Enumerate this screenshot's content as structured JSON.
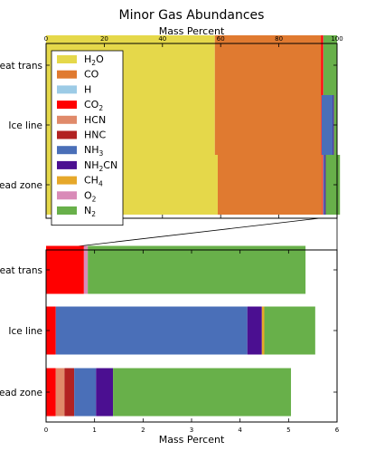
{
  "chart_data": [
    {
      "type": "bar",
      "orientation": "horizontal",
      "stacked": true,
      "title": "Minor Gas Abundances",
      "xlabel": "Mass Percent",
      "xlabel_position": "top",
      "xlim": [
        0,
        100
      ],
      "xticks": [
        "0",
        "20",
        "40",
        "60",
        "80",
        "100"
      ],
      "categories": [
        "Heat trans",
        "Ice line",
        "Dead zone"
      ],
      "legend_location": "top-left",
      "series": [
        {
          "name": "H$_2$O",
          "color": "#e5d84a",
          "values": [
            58.0,
            58.0,
            59.0
          ]
        },
        {
          "name": "CO",
          "color": "#e07a30",
          "values": [
            36.5,
            36.5,
            35.8
          ]
        },
        {
          "name": "H",
          "color": "#9ccbe6",
          "values": [
            0.0,
            0.0,
            0.0
          ]
        },
        {
          "name": "CO$_2$",
          "color": "#ff0000",
          "values": [
            0.7,
            0.2,
            0.2
          ]
        },
        {
          "name": "HCN",
          "color": "#e08a6a",
          "values": [
            0.0,
            0.0,
            0.15
          ]
        },
        {
          "name": "HNC",
          "color": "#b22222",
          "values": [
            0.0,
            0.0,
            0.15
          ]
        },
        {
          "name": "NH$_3$",
          "color": "#4a6fb8",
          "values": [
            0.0,
            3.9,
            0.45
          ]
        },
        {
          "name": "NH$_2$CN",
          "color": "#4b0f91",
          "values": [
            0.0,
            0.3,
            0.35
          ]
        },
        {
          "name": "CH$_4$",
          "color": "#e6a82a",
          "values": [
            0.0,
            0.05,
            0.0
          ]
        },
        {
          "name": "O$_2$",
          "color": "#d98bb8",
          "values": [
            0.1,
            0.0,
            0.0
          ]
        },
        {
          "name": "N$_2$",
          "color": "#68b04a",
          "values": [
            4.7,
            1.05,
            4.9
          ]
        }
      ]
    },
    {
      "type": "bar",
      "orientation": "horizontal",
      "stacked": true,
      "xlabel": "Mass Percent",
      "xlim": [
        0,
        6
      ],
      "xticks": [
        "0",
        "1",
        "2",
        "3",
        "4",
        "5",
        "6"
      ],
      "categories": [
        "Heat trans",
        "Ice line",
        "Dead zone"
      ],
      "series": [
        {
          "name": "H$_2$O",
          "color": "#e5d84a",
          "values": [
            0,
            0,
            0
          ]
        },
        {
          "name": "CO",
          "color": "#e07a30",
          "values": [
            0,
            0,
            0
          ]
        },
        {
          "name": "H",
          "color": "#9ccbe6",
          "values": [
            0,
            0,
            0
          ]
        },
        {
          "name": "CO$_2$",
          "color": "#ff0000",
          "values": [
            0.78,
            0.2,
            0.2
          ]
        },
        {
          "name": "HCN",
          "color": "#e08a6a",
          "values": [
            0,
            0,
            0.18
          ]
        },
        {
          "name": "HNC",
          "color": "#b22222",
          "values": [
            0,
            0,
            0.2
          ]
        },
        {
          "name": "NH$_3$",
          "color": "#4a6fb8",
          "values": [
            0,
            3.95,
            0.45
          ]
        },
        {
          "name": "NH$_2$CN",
          "color": "#4b0f91",
          "values": [
            0,
            0.3,
            0.35
          ]
        },
        {
          "name": "CH$_4$",
          "color": "#e6a82a",
          "values": [
            0,
            0.05,
            0
          ]
        },
        {
          "name": "O$_2$",
          "color": "#d98bb8",
          "values": [
            0.08,
            0,
            0
          ]
        },
        {
          "name": "N$_2$",
          "color": "#68b04a",
          "values": [
            4.49,
            1.05,
            3.67
          ]
        }
      ]
    }
  ],
  "legend": {
    "items": [
      {
        "base": "H",
        "sub": "2",
        "suffix": "O",
        "color": "#e5d84a"
      },
      {
        "base": "CO",
        "sub": "",
        "suffix": "",
        "color": "#e07a30"
      },
      {
        "base": "H",
        "sub": "",
        "suffix": "",
        "color": "#9ccbe6"
      },
      {
        "base": "CO",
        "sub": "2",
        "suffix": "",
        "color": "#ff0000"
      },
      {
        "base": "HCN",
        "sub": "",
        "suffix": "",
        "color": "#e08a6a"
      },
      {
        "base": "HNC",
        "sub": "",
        "suffix": "",
        "color": "#b22222"
      },
      {
        "base": "NH",
        "sub": "3",
        "suffix": "",
        "color": "#4a6fb8"
      },
      {
        "base": "NH",
        "sub": "2",
        "suffix": "CN",
        "color": "#4b0f91"
      },
      {
        "base": "CH",
        "sub": "4",
        "suffix": "",
        "color": "#e6a82a"
      },
      {
        "base": "O",
        "sub": "2",
        "suffix": "",
        "color": "#d98bb8"
      },
      {
        "base": "N",
        "sub": "2",
        "suffix": "",
        "color": "#68b04a"
      }
    ]
  }
}
